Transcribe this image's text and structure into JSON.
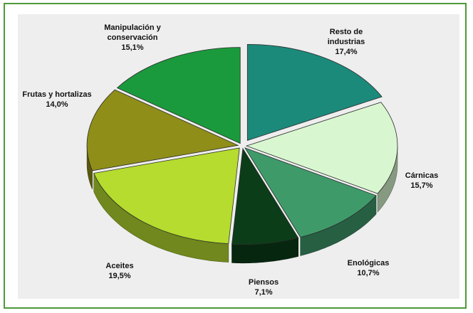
{
  "chart_data": {
    "type": "pie",
    "style": "3d-exploded",
    "title": "",
    "legend": "none",
    "slices": [
      {
        "name": "Resto de industrias",
        "lines": [
          "Resto de",
          "industrias",
          "17,4%"
        ],
        "value": 17.4,
        "color": "#1b8a7b"
      },
      {
        "name": "Cárnicas",
        "lines": [
          "Cárnicas",
          "15,7%"
        ],
        "value": 15.7,
        "color": "#d8f7d0"
      },
      {
        "name": "Enológicas",
        "lines": [
          "Enológicas",
          "10,7%"
        ],
        "value": 10.7,
        "color": "#3f9a6a"
      },
      {
        "name": "Piensos",
        "lines": [
          "Piensos",
          "7,1%"
        ],
        "value": 7.1,
        "color": "#0b3d18"
      },
      {
        "name": "Aceites",
        "lines": [
          "Aceites",
          "19,5%"
        ],
        "value": 19.5,
        "color": "#b5dc2e"
      },
      {
        "name": "Frutas y hortalizas",
        "lines": [
          "Frutas y hortalizas",
          "14,0%"
        ],
        "value": 14.0,
        "color": "#8f8e18"
      },
      {
        "name": "Manipulación y conservación",
        "lines": [
          "Manipulación y",
          "conservación",
          "15,1%"
        ],
        "value": 15.1,
        "color": "#1a9a3c"
      }
    ]
  }
}
